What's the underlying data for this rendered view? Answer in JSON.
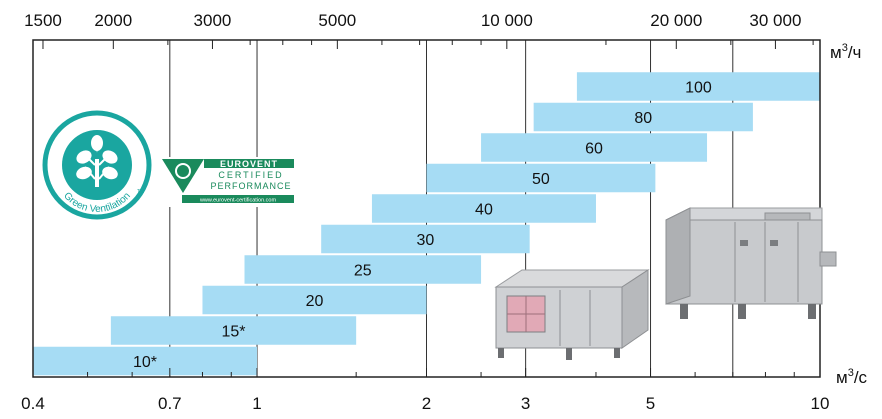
{
  "chart_data": {
    "type": "bar",
    "orientation": "horizontal-range",
    "x_scale": "log",
    "xlim": [
      0.4,
      10
    ],
    "grid": true,
    "x_bottom_unit": "м3/с",
    "x_top_unit": "м3/ч",
    "x_bottom_ticks": [
      {
        "value": 0.4,
        "label": "0.4"
      },
      {
        "value": 0.7,
        "label": "0.7"
      },
      {
        "value": 1,
        "label": "1"
      },
      {
        "value": 2,
        "label": "2"
      },
      {
        "value": 3,
        "label": "3"
      },
      {
        "value": 5,
        "label": "5"
      },
      {
        "value": 10,
        "label": "10"
      }
    ],
    "x_top_ticks": [
      {
        "value": 1500,
        "label": "1500"
      },
      {
        "value": 2000,
        "label": "2000"
      },
      {
        "value": 3000,
        "label": "3000"
      },
      {
        "value": 5000,
        "label": "5000"
      },
      {
        "value": 10000,
        "label": "10 000"
      },
      {
        "value": 20000,
        "label": "20 000"
      },
      {
        "value": 30000,
        "label": "30 000"
      }
    ],
    "bars": [
      {
        "label": "10*",
        "min": 0.4,
        "max": 1.0
      },
      {
        "label": "15*",
        "min": 0.55,
        "max": 1.5
      },
      {
        "label": "20",
        "min": 0.8,
        "max": 2.0
      },
      {
        "label": "25",
        "min": 0.95,
        "max": 2.5
      },
      {
        "label": "30",
        "min": 1.3,
        "max": 3.05
      },
      {
        "label": "40",
        "min": 1.6,
        "max": 4.0
      },
      {
        "label": "50",
        "min": 2.0,
        "max": 5.1
      },
      {
        "label": "60",
        "min": 2.5,
        "max": 6.3
      },
      {
        "label": "80",
        "min": 3.1,
        "max": 7.6
      },
      {
        "label": "100",
        "min": 3.7,
        "max": 10.0
      }
    ],
    "bar_color": "#a6dcf4"
  },
  "logos": {
    "green_ventilation": {
      "text": "Green Ventilation",
      "tm": "TM",
      "color": "#1aa6a0"
    },
    "eurovent": {
      "line1": "EUROVENT",
      "line2": "CERTIFIED",
      "line3": "PERFORMANCE",
      "url": "www.eurovent-certification.com",
      "color": "#1a8a5c"
    }
  },
  "images": [
    {
      "name": "air-handling-unit-small-photo"
    },
    {
      "name": "air-handling-unit-large-photo"
    }
  ]
}
